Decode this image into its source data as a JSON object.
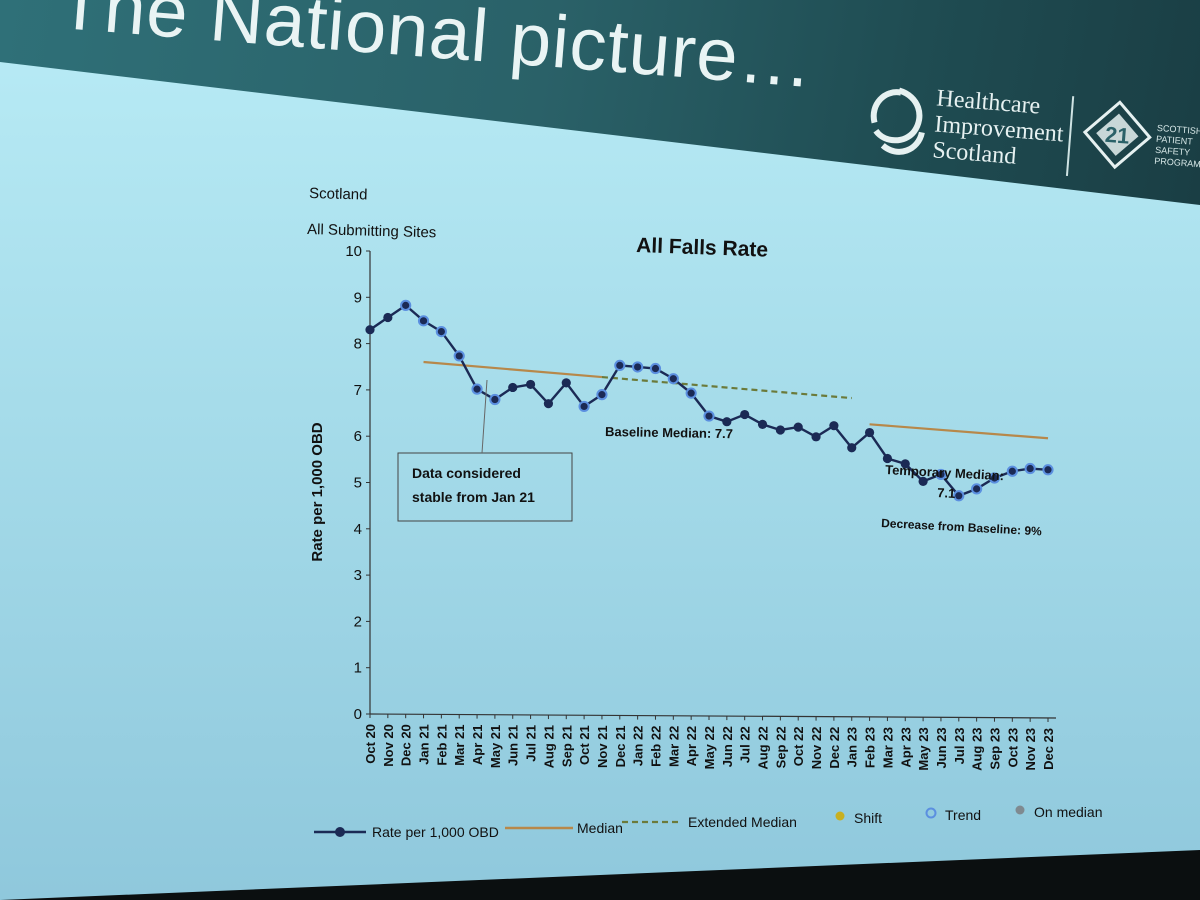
{
  "slide": {
    "title": "The National picture…",
    "logo": {
      "lines": [
        "Healthcare",
        "Improvement",
        "Scotland"
      ],
      "badge_text": "SCOTTISH PATIENT SAFETY PROGRAMME"
    },
    "colors": {
      "header": "#2a6168",
      "body": "#a6dcea"
    }
  },
  "chart_data": {
    "type": "line",
    "title": "All Falls Rate",
    "subtitle_lines": [
      "Scotland",
      "All Submitting Sites"
    ],
    "xlabel": "",
    "ylabel": "Rate per 1,000 OBD",
    "ylim": [
      0,
      10
    ],
    "yticks": [
      0,
      1,
      2,
      3,
      4,
      5,
      6,
      7,
      8,
      9,
      10
    ],
    "grid": false,
    "legend_position": "bottom",
    "categories": [
      "Oct 20",
      "Nov 20",
      "Dec 20",
      "Jan 21",
      "Feb 21",
      "Mar 21",
      "Apr 21",
      "May 21",
      "Jun 21",
      "Jul 21",
      "Aug 21",
      "Sep 21",
      "Oct 21",
      "Nov 21",
      "Dec 21",
      "Jan 22",
      "Feb 22",
      "Mar 22",
      "Apr 22",
      "May 22",
      "Jun 22",
      "Jul 22",
      "Aug 22",
      "Sep 22",
      "Oct 22",
      "Nov 22",
      "Dec 22",
      "Jan 23",
      "Feb 23",
      "Mar 23",
      "Apr 23",
      "May 23",
      "Jun 23",
      "Jul 23",
      "Aug 23",
      "Sep 23",
      "Oct 23",
      "Nov 23",
      "Dec 23"
    ],
    "series": [
      {
        "name": "Rate per 1,000 OBD",
        "color": "#1b2a55",
        "values": [
          8.3,
          8.6,
          8.9,
          8.6,
          8.4,
          7.9,
          7.2,
          7.0,
          7.3,
          7.4,
          7.0,
          7.5,
          7.0,
          7.3,
          8.0,
          8.0,
          8.0,
          7.8,
          7.5,
          7.0,
          6.9,
          7.1,
          6.9,
          6.8,
          6.9,
          6.7,
          7.0,
          6.5,
          6.9,
          6.3,
          6.2,
          5.8,
          6.0,
          5.5,
          5.7,
          6.0,
          6.2,
          6.3,
          6.3
        ],
        "trend_indices": [
          2,
          3,
          4,
          5,
          6,
          7,
          12,
          13,
          14,
          15,
          16,
          17,
          18,
          19,
          32,
          33,
          34,
          35,
          36,
          37,
          38
        ]
      }
    ],
    "median": {
      "name": "Median",
      "value": 7.7,
      "color": "#b7884a",
      "from": "Jan 21",
      "to": "Nov 21"
    },
    "extended_median": {
      "name": "Extended Median",
      "value": 7.7,
      "color": "#6b7a3a",
      "from": "Nov 21",
      "to": "Jan 23"
    },
    "temporary_median": {
      "value": 7.1,
      "color": "#b7884a",
      "from": "Feb 23",
      "to": "Dec 23"
    },
    "annotations": {
      "box": [
        "Data considered",
        "stable from Jan 21"
      ],
      "baseline_median": "Baseline Median: 7.7",
      "temporary_median": [
        "Temporary Median:",
        "7.1"
      ],
      "decrease": "Decrease from Baseline: 9%"
    },
    "legend": [
      {
        "label": "Rate per 1,000 OBD",
        "marker": "line-dot",
        "color": "#1b2a55"
      },
      {
        "label": "Median",
        "marker": "line",
        "color": "#b7884a"
      },
      {
        "label": "Extended Median",
        "marker": "dashed",
        "color": "#6b7a3a"
      },
      {
        "label": "Shift",
        "marker": "dot",
        "color": "#c8b020"
      },
      {
        "label": "Trend",
        "marker": "ring",
        "color": "#5b8fe0"
      },
      {
        "label": "On median",
        "marker": "dot",
        "color": "#7f8a90"
      }
    ]
  }
}
